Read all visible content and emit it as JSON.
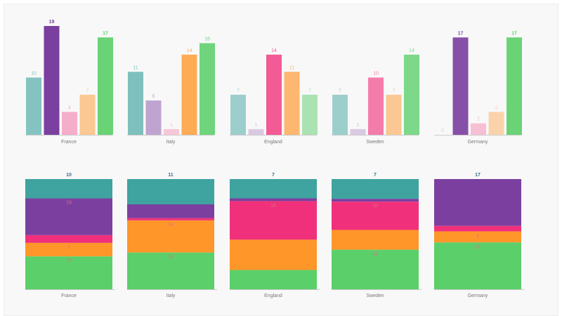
{
  "chart_data": [
    {
      "type": "bar",
      "categories": [
        "France",
        "Italy",
        "England",
        "Sweden",
        "Germany"
      ],
      "series": [
        {
          "values": [
            10,
            11,
            7,
            7,
            0
          ]
        },
        {
          "values": [
            19,
            6,
            1,
            1,
            17
          ]
        },
        {
          "values": [
            4,
            1,
            14,
            10,
            2
          ]
        },
        {
          "values": [
            7,
            14,
            11,
            7,
            4
          ]
        },
        {
          "values": [
            17,
            16,
            7,
            14,
            17
          ]
        }
      ],
      "ylim": [
        0,
        19
      ],
      "grid": false,
      "data_labels": true
    },
    {
      "type": "bar",
      "stacked": true,
      "normalized": true,
      "categories": [
        "France",
        "Italy",
        "England",
        "Sweden",
        "Germany"
      ],
      "series": [
        {
          "values": [
            10,
            11,
            7,
            7,
            0
          ]
        },
        {
          "values": [
            19,
            6,
            1,
            1,
            17
          ]
        },
        {
          "values": [
            4,
            1,
            14,
            10,
            2
          ]
        },
        {
          "values": [
            7,
            14,
            11,
            7,
            4
          ]
        },
        {
          "values": [
            17,
            16,
            7,
            14,
            17
          ]
        }
      ],
      "visible_labels": [
        [
          "10",
          "19",
          "7",
          "17"
        ],
        [
          "11",
          "14",
          "16"
        ],
        [
          "7",
          "14"
        ],
        [
          "7",
          "10",
          "14"
        ],
        [
          "17",
          "4",
          "17"
        ]
      ],
      "grid": false
    }
  ],
  "colors": [
    "#3fa39f",
    "#7b3fa0",
    "#f0307a",
    "#ff962a",
    "#5bcf6a"
  ]
}
